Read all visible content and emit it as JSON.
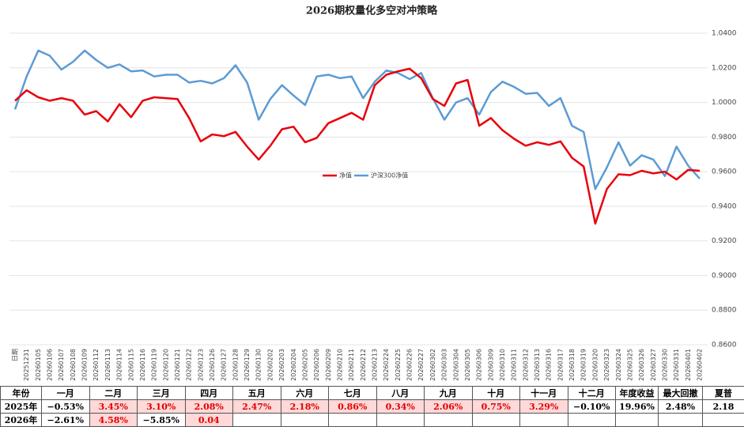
{
  "chart_data": {
    "type": "line",
    "title": "2026期权量化多空对冲策略",
    "categories": [
      "日期",
      "20251231",
      "20260105",
      "20260106",
      "20260107",
      "20260108",
      "20260109",
      "20260112",
      "20260113",
      "20260114",
      "20260115",
      "20260116",
      "20260119",
      "20260120",
      "20260121",
      "20260122",
      "20260123",
      "20260126",
      "20260127",
      "20260128",
      "20260129",
      "20260130",
      "20260202",
      "20260203",
      "20260204",
      "20260205",
      "20260206",
      "20260209",
      "20260210",
      "20260211",
      "20260212",
      "20260213",
      "20260224",
      "20260225",
      "20260226",
      "20260227",
      "20260302",
      "20260303",
      "20260304",
      "20260305",
      "20260306",
      "20260309",
      "20260310",
      "20260311",
      "20260312",
      "20260313",
      "20260316",
      "20260317",
      "20260318",
      "20260319",
      "20260320",
      "20260323",
      "20260324",
      "20260325",
      "20260326",
      "20260327",
      "20260330",
      "20260331",
      "20260401",
      "20260402"
    ],
    "series": [
      {
        "name": "净值",
        "color": "#e8000b",
        "values": [
          1.001,
          1.007,
          1.003,
          1.001,
          1.0025,
          1.001,
          0.993,
          0.995,
          0.989,
          0.999,
          0.9915,
          1.001,
          1.003,
          1.0025,
          1.002,
          0.991,
          0.9775,
          0.9815,
          0.9805,
          0.983,
          0.9745,
          0.967,
          0.975,
          0.9845,
          0.986,
          0.977,
          0.9795,
          0.988,
          0.991,
          0.994,
          0.99,
          1.01,
          1.016,
          1.018,
          1.0195,
          1.014,
          1.002,
          0.998,
          1.011,
          1.013,
          0.9865,
          0.991,
          0.984,
          0.979,
          0.975,
          0.977,
          0.9755,
          0.9775,
          0.968,
          0.963,
          0.93,
          0.95,
          0.9585,
          0.958,
          0.9605,
          0.959,
          0.96,
          0.9555,
          0.961,
          0.9605
        ]
      },
      {
        "name": "沪深300净值",
        "color": "#5b9bd5",
        "values": [
          0.996,
          1.015,
          1.03,
          1.027,
          1.019,
          1.0235,
          1.03,
          1.0245,
          1.02,
          1.022,
          1.018,
          1.0185,
          1.015,
          1.016,
          1.016,
          1.0115,
          1.0125,
          1.011,
          1.014,
          1.0215,
          1.0115,
          0.99,
          1.002,
          1.01,
          1.004,
          0.9985,
          1.015,
          1.016,
          1.014,
          1.015,
          1.0025,
          1.012,
          1.0185,
          1.017,
          1.0135,
          1.017,
          1.0025,
          0.99,
          1.0,
          1.0025,
          0.993,
          1.006,
          1.012,
          1.009,
          1.005,
          1.0055,
          0.998,
          1.0025,
          0.9865,
          0.983,
          0.95,
          0.9625,
          0.977,
          0.9635,
          0.9695,
          0.967,
          0.9575,
          0.9745,
          0.9635,
          0.956
        ]
      }
    ],
    "ylim": [
      0.86,
      1.04
    ],
    "yticks": [
      {
        "value": 0.86,
        "label": "0.8600"
      },
      {
        "value": 0.88,
        "label": "0.8800"
      },
      {
        "value": 0.9,
        "label": "0.9000"
      },
      {
        "value": 0.92,
        "label": "0.9200"
      },
      {
        "value": 0.94,
        "label": "0.9400"
      },
      {
        "value": 0.96,
        "label": "0.9600"
      },
      {
        "value": 0.98,
        "label": "0.9800"
      },
      {
        "value": 1.0,
        "label": "1.0000"
      },
      {
        "value": 1.02,
        "label": "1.0200"
      },
      {
        "value": 1.04,
        "label": "1.0400"
      }
    ],
    "grid": true
  },
  "table": {
    "header": [
      "年份",
      "一月",
      "二月",
      "三月",
      "四月",
      "五月",
      "六月",
      "七月",
      "八月",
      "九月",
      "十月",
      "十一月",
      "十二月",
      "年度收益",
      "最大回撤",
      "夏普"
    ],
    "rows": [
      [
        "2025年",
        "−0.53%",
        "3.45%",
        "3.10%",
        "2.08%",
        "2.47%",
        "2.18%",
        "0.86%",
        "0.34%",
        "2.06%",
        "0.75%",
        "3.29%",
        "−0.10%",
        "19.96%",
        "2.48%",
        "2.18"
      ],
      [
        "2026年",
        "−2.61%",
        "4.58%",
        "−5.85%",
        "0.04"
      ]
    ]
  }
}
